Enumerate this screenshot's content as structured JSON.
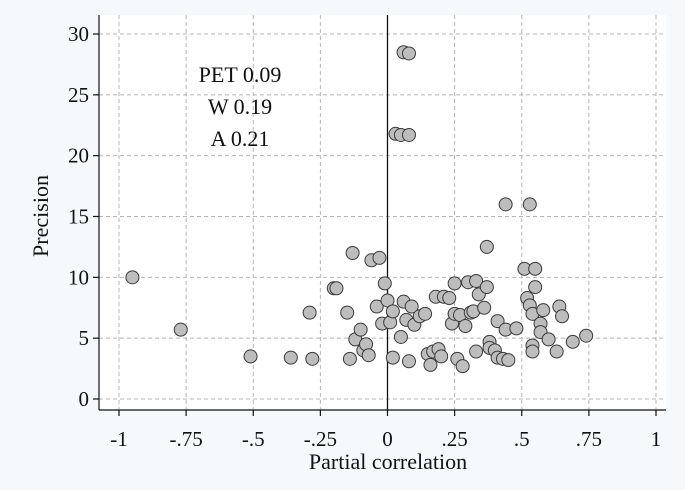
{
  "chart_data": {
    "type": "scatter",
    "title": "",
    "xlabel": "Partial correlation",
    "ylabel": "Precision",
    "xlim": [
      -1,
      1
    ],
    "ylim": [
      0,
      30
    ],
    "x_ticks": [
      -1,
      -0.75,
      -0.5,
      -0.25,
      0,
      0.25,
      0.5,
      0.75,
      1
    ],
    "x_tick_labels": [
      "-1",
      "-.75",
      "-.5",
      "-.25",
      "0",
      ".25",
      ".5",
      ".75",
      "1"
    ],
    "y_ticks": [
      0,
      5,
      10,
      15,
      20,
      25,
      30
    ],
    "y_tick_labels": [
      "0",
      "5",
      "10",
      "15",
      "20",
      "25",
      "30"
    ],
    "grid": true,
    "reference_line_x": 0,
    "annotations": [
      "PET 0.09",
      "W 0.19",
      "A 0.21"
    ],
    "colors": {
      "marker_fill": "#bdbdbd",
      "marker_stroke": "#3a3a3a",
      "grid": "#b5b5b5",
      "background": "#ffffff"
    },
    "points": [
      {
        "x": -0.95,
        "y": 10.0
      },
      {
        "x": -0.77,
        "y": 5.7
      },
      {
        "x": -0.51,
        "y": 3.5
      },
      {
        "x": -0.36,
        "y": 3.4
      },
      {
        "x": -0.29,
        "y": 7.1
      },
      {
        "x": -0.28,
        "y": 3.3
      },
      {
        "x": -0.2,
        "y": 9.1
      },
      {
        "x": -0.19,
        "y": 9.1
      },
      {
        "x": -0.15,
        "y": 7.1
      },
      {
        "x": -0.14,
        "y": 3.3
      },
      {
        "x": -0.13,
        "y": 12.0
      },
      {
        "x": -0.12,
        "y": 4.9
      },
      {
        "x": -0.1,
        "y": 5.7
      },
      {
        "x": -0.09,
        "y": 4.0
      },
      {
        "x": -0.08,
        "y": 4.5
      },
      {
        "x": -0.07,
        "y": 3.6
      },
      {
        "x": -0.06,
        "y": 11.4
      },
      {
        "x": -0.04,
        "y": 7.6
      },
      {
        "x": -0.03,
        "y": 11.6
      },
      {
        "x": -0.02,
        "y": 6.2
      },
      {
        "x": -0.01,
        "y": 9.5
      },
      {
        "x": 0.0,
        "y": 8.1
      },
      {
        "x": 0.01,
        "y": 6.3
      },
      {
        "x": 0.02,
        "y": 7.2
      },
      {
        "x": 0.02,
        "y": 3.4
      },
      {
        "x": 0.03,
        "y": 21.8
      },
      {
        "x": 0.05,
        "y": 21.7
      },
      {
        "x": 0.05,
        "y": 5.1
      },
      {
        "x": 0.06,
        "y": 8.0
      },
      {
        "x": 0.06,
        "y": 28.5
      },
      {
        "x": 0.07,
        "y": 6.5
      },
      {
        "x": 0.08,
        "y": 28.4
      },
      {
        "x": 0.08,
        "y": 21.7
      },
      {
        "x": 0.08,
        "y": 3.1
      },
      {
        "x": 0.09,
        "y": 7.6
      },
      {
        "x": 0.1,
        "y": 6.1
      },
      {
        "x": 0.12,
        "y": 6.8
      },
      {
        "x": 0.14,
        "y": 7.0
      },
      {
        "x": 0.15,
        "y": 3.7
      },
      {
        "x": 0.16,
        "y": 2.8
      },
      {
        "x": 0.17,
        "y": 3.9
      },
      {
        "x": 0.18,
        "y": 8.4
      },
      {
        "x": 0.19,
        "y": 4.1
      },
      {
        "x": 0.2,
        "y": 3.5
      },
      {
        "x": 0.21,
        "y": 8.4
      },
      {
        "x": 0.23,
        "y": 8.3
      },
      {
        "x": 0.24,
        "y": 6.2
      },
      {
        "x": 0.25,
        "y": 9.5
      },
      {
        "x": 0.25,
        "y": 7.0
      },
      {
        "x": 0.26,
        "y": 3.3
      },
      {
        "x": 0.27,
        "y": 6.9
      },
      {
        "x": 0.28,
        "y": 2.7
      },
      {
        "x": 0.29,
        "y": 6.0
      },
      {
        "x": 0.3,
        "y": 9.6
      },
      {
        "x": 0.31,
        "y": 7.1
      },
      {
        "x": 0.32,
        "y": 7.2
      },
      {
        "x": 0.33,
        "y": 9.7
      },
      {
        "x": 0.33,
        "y": 3.9
      },
      {
        "x": 0.34,
        "y": 8.6
      },
      {
        "x": 0.36,
        "y": 7.5
      },
      {
        "x": 0.37,
        "y": 9.2
      },
      {
        "x": 0.37,
        "y": 12.5
      },
      {
        "x": 0.38,
        "y": 4.7
      },
      {
        "x": 0.38,
        "y": 4.2
      },
      {
        "x": 0.4,
        "y": 4.0
      },
      {
        "x": 0.41,
        "y": 3.4
      },
      {
        "x": 0.41,
        "y": 6.4
      },
      {
        "x": 0.43,
        "y": 3.3
      },
      {
        "x": 0.44,
        "y": 16.0
      },
      {
        "x": 0.44,
        "y": 5.7
      },
      {
        "x": 0.45,
        "y": 3.2
      },
      {
        "x": 0.48,
        "y": 5.8
      },
      {
        "x": 0.51,
        "y": 10.7
      },
      {
        "x": 0.52,
        "y": 8.3
      },
      {
        "x": 0.53,
        "y": 16.0
      },
      {
        "x": 0.53,
        "y": 7.7
      },
      {
        "x": 0.54,
        "y": 7.0
      },
      {
        "x": 0.54,
        "y": 4.4
      },
      {
        "x": 0.54,
        "y": 3.9
      },
      {
        "x": 0.55,
        "y": 10.7
      },
      {
        "x": 0.55,
        "y": 9.2
      },
      {
        "x": 0.57,
        "y": 6.2
      },
      {
        "x": 0.57,
        "y": 5.5
      },
      {
        "x": 0.58,
        "y": 7.3
      },
      {
        "x": 0.6,
        "y": 4.9
      },
      {
        "x": 0.63,
        "y": 3.9
      },
      {
        "x": 0.64,
        "y": 7.6
      },
      {
        "x": 0.65,
        "y": 6.8
      },
      {
        "x": 0.69,
        "y": 4.7
      },
      {
        "x": 0.74,
        "y": 5.2
      }
    ]
  }
}
